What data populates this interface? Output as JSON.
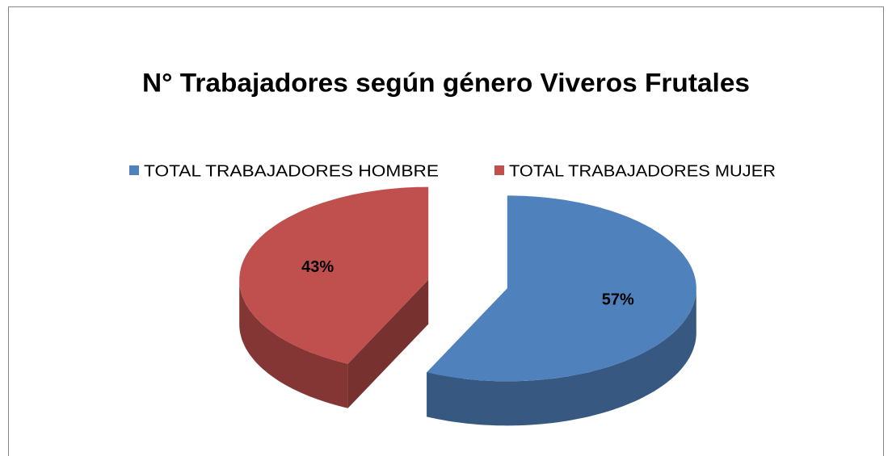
{
  "chart_data": {
    "type": "pie",
    "title": "N° Trabajadores según género Viveros Frutales",
    "categories": [
      "TOTAL TRABAJADORES HOMBRE",
      "TOTAL TRABAJADORES MUJER"
    ],
    "values": [
      57,
      43
    ],
    "value_labels": [
      "57%",
      "43%"
    ],
    "colors": [
      "#4f81bd",
      "#c0504d"
    ],
    "legend": "top"
  }
}
